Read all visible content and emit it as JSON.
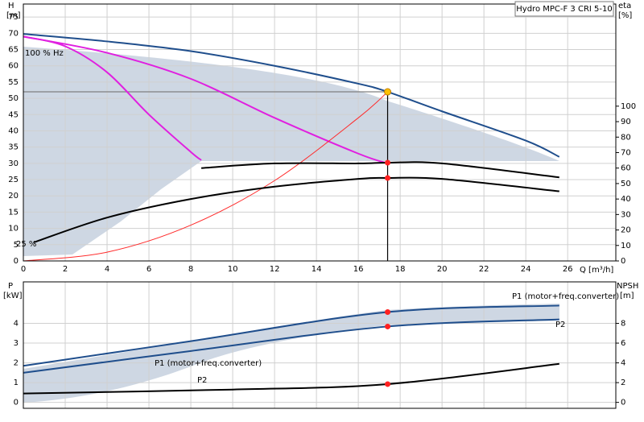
{
  "chart_data": [
    {
      "type": "line",
      "title": "Hydro MPC-F 3 CRI 5-10",
      "y_label": "H",
      "y_unit": "[m]",
      "y2_label": "eta",
      "y2_unit": "[%]",
      "x_label": "Q [m³/h]",
      "annotations": [
        "100 % Hz",
        "25 %"
      ],
      "xlim": [
        0,
        28.3
      ],
      "xticks": [
        0,
        2,
        4,
        6,
        8,
        10,
        12,
        14,
        16,
        18,
        20,
        22,
        24,
        26
      ],
      "ylim": [
        0,
        79
      ],
      "yticks": [
        0,
        5,
        10,
        15,
        20,
        25,
        30,
        35,
        40,
        45,
        50,
        55,
        60,
        65,
        70,
        75
      ],
      "y2lim": [
        0,
        166
      ],
      "y2ticks": [
        0,
        10,
        20,
        30,
        40,
        50,
        60,
        70,
        80,
        90,
        100
      ],
      "grid": true,
      "duty_point": {
        "x": 17.4,
        "y": 52
      },
      "series": [
        {
          "color": "#1f4e8c",
          "x": [
            0,
            4,
            8,
            12,
            16,
            17.4,
            20,
            24,
            25.6
          ],
          "values": [
            69.8,
            67.5,
            64.5,
            60,
            54.5,
            52,
            46,
            37,
            32
          ]
        },
        {
          "color": "#e020e0",
          "x": [
            0,
            4,
            8,
            12,
            16,
            17.4
          ],
          "values": [
            69,
            64,
            56,
            44,
            33,
            30
          ]
        },
        {
          "color": "#e020e0",
          "x": [
            0,
            2,
            4,
            6,
            8,
            8.5
          ],
          "values": [
            69,
            66,
            58,
            45,
            33.5,
            31
          ]
        },
        {
          "color": "#ff2a2a",
          "x": [
            0,
            4,
            8,
            12,
            16,
            17.4
          ],
          "values": [
            0,
            2.7,
            11,
            24.7,
            44,
            52
          ]
        },
        {
          "color": "#000000",
          "axis": "y2",
          "x": [
            0.5,
            4,
            8,
            12,
            16,
            17.4,
            20,
            25.6
          ],
          "values": [
            12,
            28,
            40,
            48,
            53,
            53.6,
            53,
            45
          ]
        },
        {
          "color": "#000000",
          "axis": "y2",
          "x": [
            8.5,
            12,
            16,
            17.4,
            20,
            25.6
          ],
          "values": [
            60,
            63,
            63,
            63.5,
            63,
            54
          ]
        }
      ]
    },
    {
      "type": "line",
      "y_label": "P",
      "y_unit": "[kW]",
      "y2_label": "NPSH",
      "y2_unit": "[m]",
      "xlim": [
        0,
        28.3
      ],
      "xticks": [
        0,
        2,
        4,
        6,
        8,
        10,
        12,
        14,
        16,
        18,
        20,
        22,
        24,
        26
      ],
      "ylim": [
        -0.3,
        6.1
      ],
      "yticks": [
        0,
        1,
        2,
        3,
        4
      ],
      "y2lim": [
        -0.6,
        12.2
      ],
      "y2ticks": [
        0,
        2,
        4,
        6,
        8
      ],
      "grid": true,
      "duty_point": {
        "x": 17.4
      },
      "series": [
        {
          "name": "P1 (motor+freq.converter)",
          "color": "#1f4e8c",
          "x": [
            0,
            8,
            17.4,
            25.6
          ],
          "values": [
            1.85,
            3.1,
            4.57,
            4.9
          ]
        },
        {
          "name": "P2",
          "color": "#1f4e8c",
          "x": [
            0,
            8,
            17.4,
            25.6
          ],
          "values": [
            1.5,
            2.6,
            3.84,
            4.2
          ]
        },
        {
          "color": "#000000",
          "axis": "y2",
          "x": [
            0,
            10,
            17.4,
            25.6
          ],
          "values": [
            0.9,
            1.3,
            1.85,
            3.9
          ]
        }
      ]
    }
  ]
}
